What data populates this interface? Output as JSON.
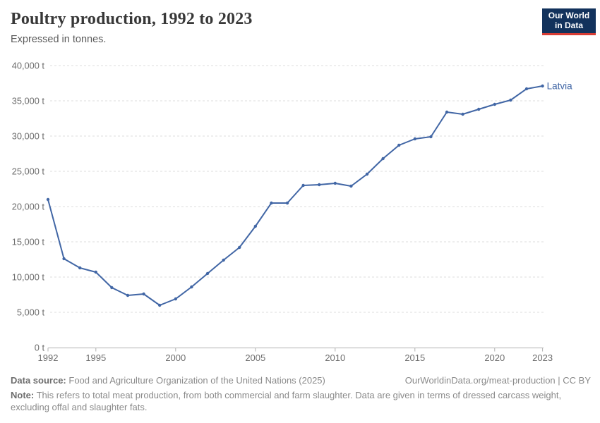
{
  "header": {
    "title": "Poultry production, 1992 to 2023",
    "subtitle": "Expressed in tonnes."
  },
  "logo": {
    "line1": "Our World",
    "line2": "in Data"
  },
  "chart_data": {
    "type": "line",
    "title": "Poultry production, 1992 to 2023",
    "unit": "t",
    "x": [
      1992,
      1993,
      1994,
      1995,
      1996,
      1997,
      1998,
      1999,
      2000,
      2001,
      2002,
      2003,
      2004,
      2005,
      2006,
      2007,
      2008,
      2009,
      2010,
      2011,
      2012,
      2013,
      2014,
      2015,
      2016,
      2017,
      2018,
      2019,
      2020,
      2021,
      2022,
      2023
    ],
    "series": [
      {
        "name": "Latvia",
        "color": "#4166a5",
        "values": [
          21000,
          12600,
          11300,
          10700,
          8500,
          7400,
          7600,
          6000,
          6900,
          8600,
          10500,
          12400,
          14200,
          17200,
          20500,
          20500,
          23000,
          23100,
          23300,
          22900,
          24600,
          26800,
          28700,
          29600,
          29900,
          33400,
          33100,
          33800,
          34500,
          35100,
          36700,
          37100
        ]
      }
    ],
    "ylim": [
      0,
      40000
    ],
    "ytick_step": 5000,
    "ytick_suffix": " t",
    "xticks": [
      1992,
      1995,
      2000,
      2005,
      2010,
      2015,
      2020,
      2023
    ],
    "grid": "horizontal-dashed",
    "legend_position": "end-of-line-label"
  },
  "footer": {
    "datasource_label": "Data source:",
    "datasource": "Food and Agriculture Organization of the United Nations (2025)",
    "link": "OurWorldinData.org/meat-production | CC BY",
    "note_label": "Note:",
    "note": "This refers to total meat production, from both commercial and farm slaughter. Data are given in terms of dressed carcass weight, excluding offal and slaughter fats."
  },
  "colors": {
    "line": "#4166a5",
    "logo_bg": "#12325c",
    "logo_red": "#d73c34",
    "grid": "#dddddd",
    "axis": "#b0b0b0",
    "tick_label": "#6e6e6e"
  }
}
